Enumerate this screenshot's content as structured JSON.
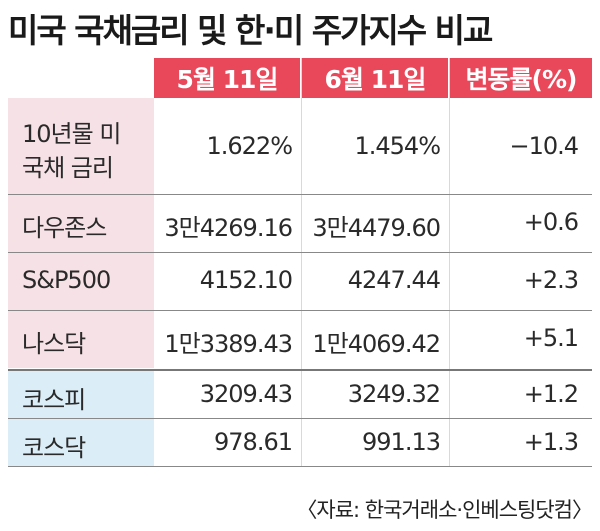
{
  "title": "미국 국채금리 및 한·미 주가지수 비교",
  "headers": {
    "col1": "5월 11일",
    "col2": "6월 11일",
    "col3": "변동률(%)"
  },
  "rows": [
    {
      "label_line1": "10년물 미",
      "label_line2": "국채 금리",
      "may": "1.622%",
      "june": "1.454%",
      "change": "−10.4"
    },
    {
      "label": "다우존스",
      "may": "3만4269.16",
      "june": "3만4479.60",
      "change": "+0.6"
    },
    {
      "label": "S&P500",
      "may": "4152.10",
      "june": "4247.44",
      "change": "+2.3"
    },
    {
      "label": "나스닥",
      "may": "1만3389.43",
      "june": "1만4069.42",
      "change": "+5.1"
    },
    {
      "label": "코스피",
      "may": "3209.43",
      "june": "3249.32",
      "change": "+1.2"
    },
    {
      "label": "코스닥",
      "may": "978.61",
      "june": "991.13",
      "change": "+1.3"
    }
  ],
  "source": "〈자료: 한국거래소·인베스팅닷컴〉",
  "colors": {
    "header": "#e8485a",
    "us_label_bg": "#f6e1e6",
    "kr_label_bg": "#dbeef7"
  }
}
